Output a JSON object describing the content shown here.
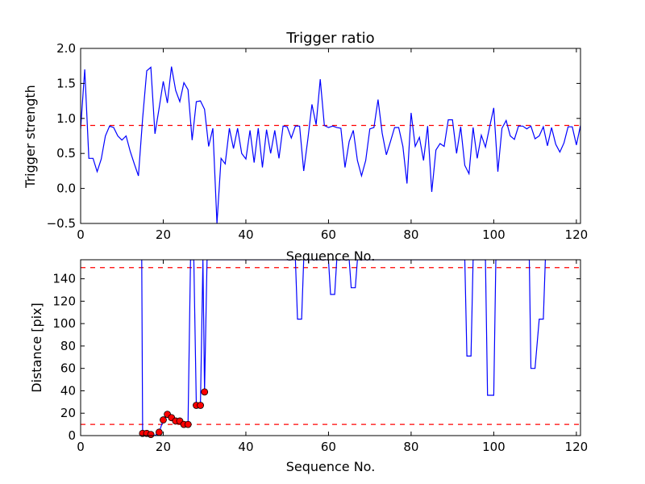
{
  "chart_data": [
    {
      "type": "line",
      "title": "Trigger ratio",
      "xlabel": "Sequence No.",
      "ylabel": "Trigger strength",
      "xlim": [
        0,
        121
      ],
      "ylim": [
        -0.5,
        2.0
      ],
      "xticks": [
        "0",
        "20",
        "40",
        "60",
        "80",
        "100",
        "120"
      ],
      "yticks": [
        "−0.5",
        "0.0",
        "0.5",
        "1.0",
        "1.5",
        "2.0"
      ],
      "grid": false,
      "line_color": "#0000ff",
      "threshold_color": "#ff0000",
      "thresholds": [
        0.9
      ],
      "series": [
        {
          "x": [
            0,
            1,
            2,
            3,
            4,
            5,
            6,
            7,
            8,
            9,
            10,
            11,
            12,
            13,
            14,
            15,
            16,
            17,
            18,
            19,
            20,
            21,
            22,
            23,
            24,
            25,
            26,
            27,
            28,
            29,
            30,
            31,
            32,
            33,
            34,
            35,
            36,
            37,
            38,
            39,
            40,
            41,
            42,
            43,
            44,
            45,
            46,
            47,
            48,
            49,
            50,
            51,
            52,
            53,
            54,
            55,
            56,
            57,
            58,
            59,
            60,
            61,
            62,
            63,
            64,
            65,
            66,
            67,
            68,
            69,
            70,
            71,
            72,
            73,
            74,
            75,
            76,
            77,
            78,
            79,
            80,
            81,
            82,
            83,
            84,
            85,
            86,
            87,
            88,
            89,
            90,
            91,
            92,
            93,
            94,
            95,
            96,
            97,
            98,
            99,
            100,
            101,
            102,
            103,
            104,
            105,
            106,
            107,
            108,
            109,
            110,
            111,
            112,
            113,
            114,
            115,
            116,
            117,
            118,
            119,
            120,
            121
          ],
          "values": [
            0.85,
            1.7,
            0.43,
            0.43,
            0.24,
            0.42,
            0.75,
            0.89,
            0.87,
            0.75,
            0.69,
            0.75,
            0.53,
            0.35,
            0.18,
            1.0,
            1.68,
            1.73,
            0.78,
            1.15,
            1.53,
            1.22,
            1.74,
            1.4,
            1.24,
            1.51,
            1.41,
            0.69,
            1.24,
            1.25,
            1.13,
            0.6,
            0.86,
            -0.5,
            0.43,
            0.35,
            0.86,
            0.57,
            0.86,
            0.5,
            0.42,
            0.83,
            0.37,
            0.86,
            0.3,
            0.84,
            0.5,
            0.83,
            0.43,
            0.89,
            0.88,
            0.72,
            0.89,
            0.89,
            0.25,
            0.7,
            1.2,
            0.91,
            1.56,
            0.9,
            0.87,
            0.89,
            0.87,
            0.86,
            0.3,
            0.67,
            0.83,
            0.4,
            0.18,
            0.4,
            0.85,
            0.87,
            1.27,
            0.79,
            0.48,
            0.67,
            0.87,
            0.87,
            0.6,
            0.07,
            1.08,
            0.6,
            0.73,
            0.4,
            0.89,
            -0.05,
            0.55,
            0.64,
            0.6,
            0.98,
            0.98,
            0.5,
            0.88,
            0.33,
            0.21,
            0.87,
            0.43,
            0.76,
            0.59,
            0.88,
            1.15,
            0.24,
            0.86,
            0.97,
            0.75,
            0.7,
            0.89,
            0.89,
            0.85,
            0.89,
            0.71,
            0.75,
            0.88,
            0.61,
            0.87,
            0.63,
            0.52,
            0.65,
            0.88,
            0.88,
            0.62,
            0.9
          ]
        }
      ]
    },
    {
      "type": "line",
      "title": "",
      "xlabel": "Sequence No.",
      "ylabel": "Distance [pix]",
      "xlim": [
        0,
        121
      ],
      "ylim": [
        0,
        157
      ],
      "xticks": [
        "0",
        "20",
        "40",
        "60",
        "80",
        "100",
        "120"
      ],
      "yticks": [
        "0",
        "20",
        "40",
        "60",
        "80",
        "100",
        "120",
        "140"
      ],
      "grid": false,
      "line_color": "#0000ff",
      "threshold_color": "#ff0000",
      "marker_color": "#ff0000",
      "thresholds": [
        150,
        10
      ],
      "series": [
        {
          "x": [
            14.8,
            15,
            16,
            17,
            18,
            19,
            20,
            21,
            22,
            23,
            24,
            25,
            26,
            26.6,
            27.4,
            28,
            28.6,
            29,
            29.6,
            30,
            30.6,
            52,
            52.5,
            53.5,
            54,
            60,
            60.5,
            61.5,
            62,
            65,
            65.5,
            66.5,
            67,
            93,
            93.5,
            94.5,
            95,
            98,
            98.5,
            99.5,
            100,
            100.5,
            108.6,
            109,
            110,
            111,
            112,
            112.5
          ],
          "values": [
            157,
            2,
            2,
            1,
            0,
            3,
            14,
            19,
            16,
            13,
            13,
            10,
            10,
            157,
            157,
            27,
            27,
            27,
            157,
            39,
            157,
            157,
            104,
            104,
            157,
            157,
            126,
            126,
            157,
            157,
            132,
            132,
            157,
            157,
            71,
            71,
            157,
            157,
            36,
            36,
            36,
            157,
            157,
            60,
            60,
            104,
            104,
            157
          ]
        },
        {
          "name": "",
          "x": [
            15,
            16,
            17,
            19,
            20,
            21,
            22,
            23,
            24,
            25,
            26,
            28,
            29,
            30
          ],
          "values": [
            2,
            2,
            1,
            3,
            14,
            19,
            16,
            13,
            13,
            10,
            10,
            27,
            27,
            39
          ]
        }
      ]
    }
  ]
}
